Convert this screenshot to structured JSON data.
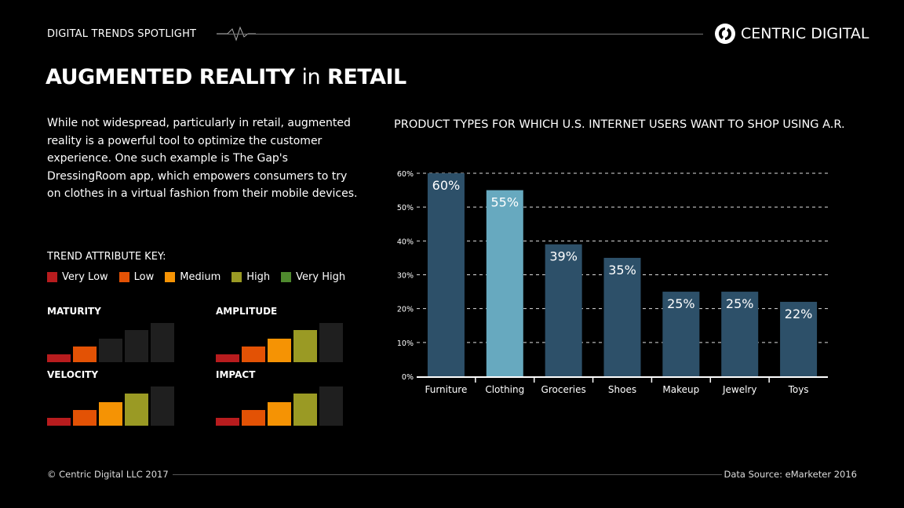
{
  "header": {
    "kicker": "DIGITAL TRENDS SPOTLIGHT",
    "brand": "CENTRIC DIGITAL"
  },
  "title": {
    "part1": "AUGMENTED REALITY",
    "part2": "in",
    "part3": "RETAIL"
  },
  "intro": "While not widespread, particularly in retail, augmented reality is a powerful tool to optimize the customer experience. One such example is The Gap's DressingRoom app, which empowers consumers to try on clothes in a virtual fashion from their mobile devices.",
  "key": {
    "title": "TREND ATTRIBUTE KEY:",
    "levels": [
      {
        "label": "Very Low",
        "color": "#b81c1e"
      },
      {
        "label": "Low",
        "color": "#e35205"
      },
      {
        "label": "Medium",
        "color": "#f59304"
      },
      {
        "label": "High",
        "color": "#9a9a24"
      },
      {
        "label": "Very High",
        "color": "#4f8a2e"
      }
    ],
    "inactive_color": "#1f1f1f"
  },
  "attributes": [
    {
      "label": "MATURITY",
      "level": 2
    },
    {
      "label": "AMPLITUDE",
      "level": 4
    },
    {
      "label": "VELOCITY",
      "level": 4
    },
    {
      "label": "IMPACT",
      "level": 4
    }
  ],
  "chart_data": {
    "type": "bar",
    "title": "PRODUCT TYPES FOR WHICH U.S. INTERNET USERS WANT TO SHOP USING A.R.",
    "categories": [
      "Furniture",
      "Clothing",
      "Groceries",
      "Shoes",
      "Makeup",
      "Jewelry",
      "Toys"
    ],
    "values": [
      60,
      55,
      39,
      35,
      25,
      25,
      22
    ],
    "data_labels": [
      "60%",
      "55%",
      "39%",
      "35%",
      "25%",
      "25%",
      "22%"
    ],
    "ylim": [
      0,
      60
    ],
    "yticks": [
      "0%",
      "10%",
      "20%",
      "30%",
      "40%",
      "50%",
      "60%"
    ],
    "grid": true,
    "colors": {
      "default": "#2d5069",
      "highlight": "#67a9bf"
    },
    "highlight_category": "Clothing"
  },
  "footer": {
    "copyright": "© Centric Digital LLC 2017",
    "source": "Data Source: eMarketer 2016"
  }
}
